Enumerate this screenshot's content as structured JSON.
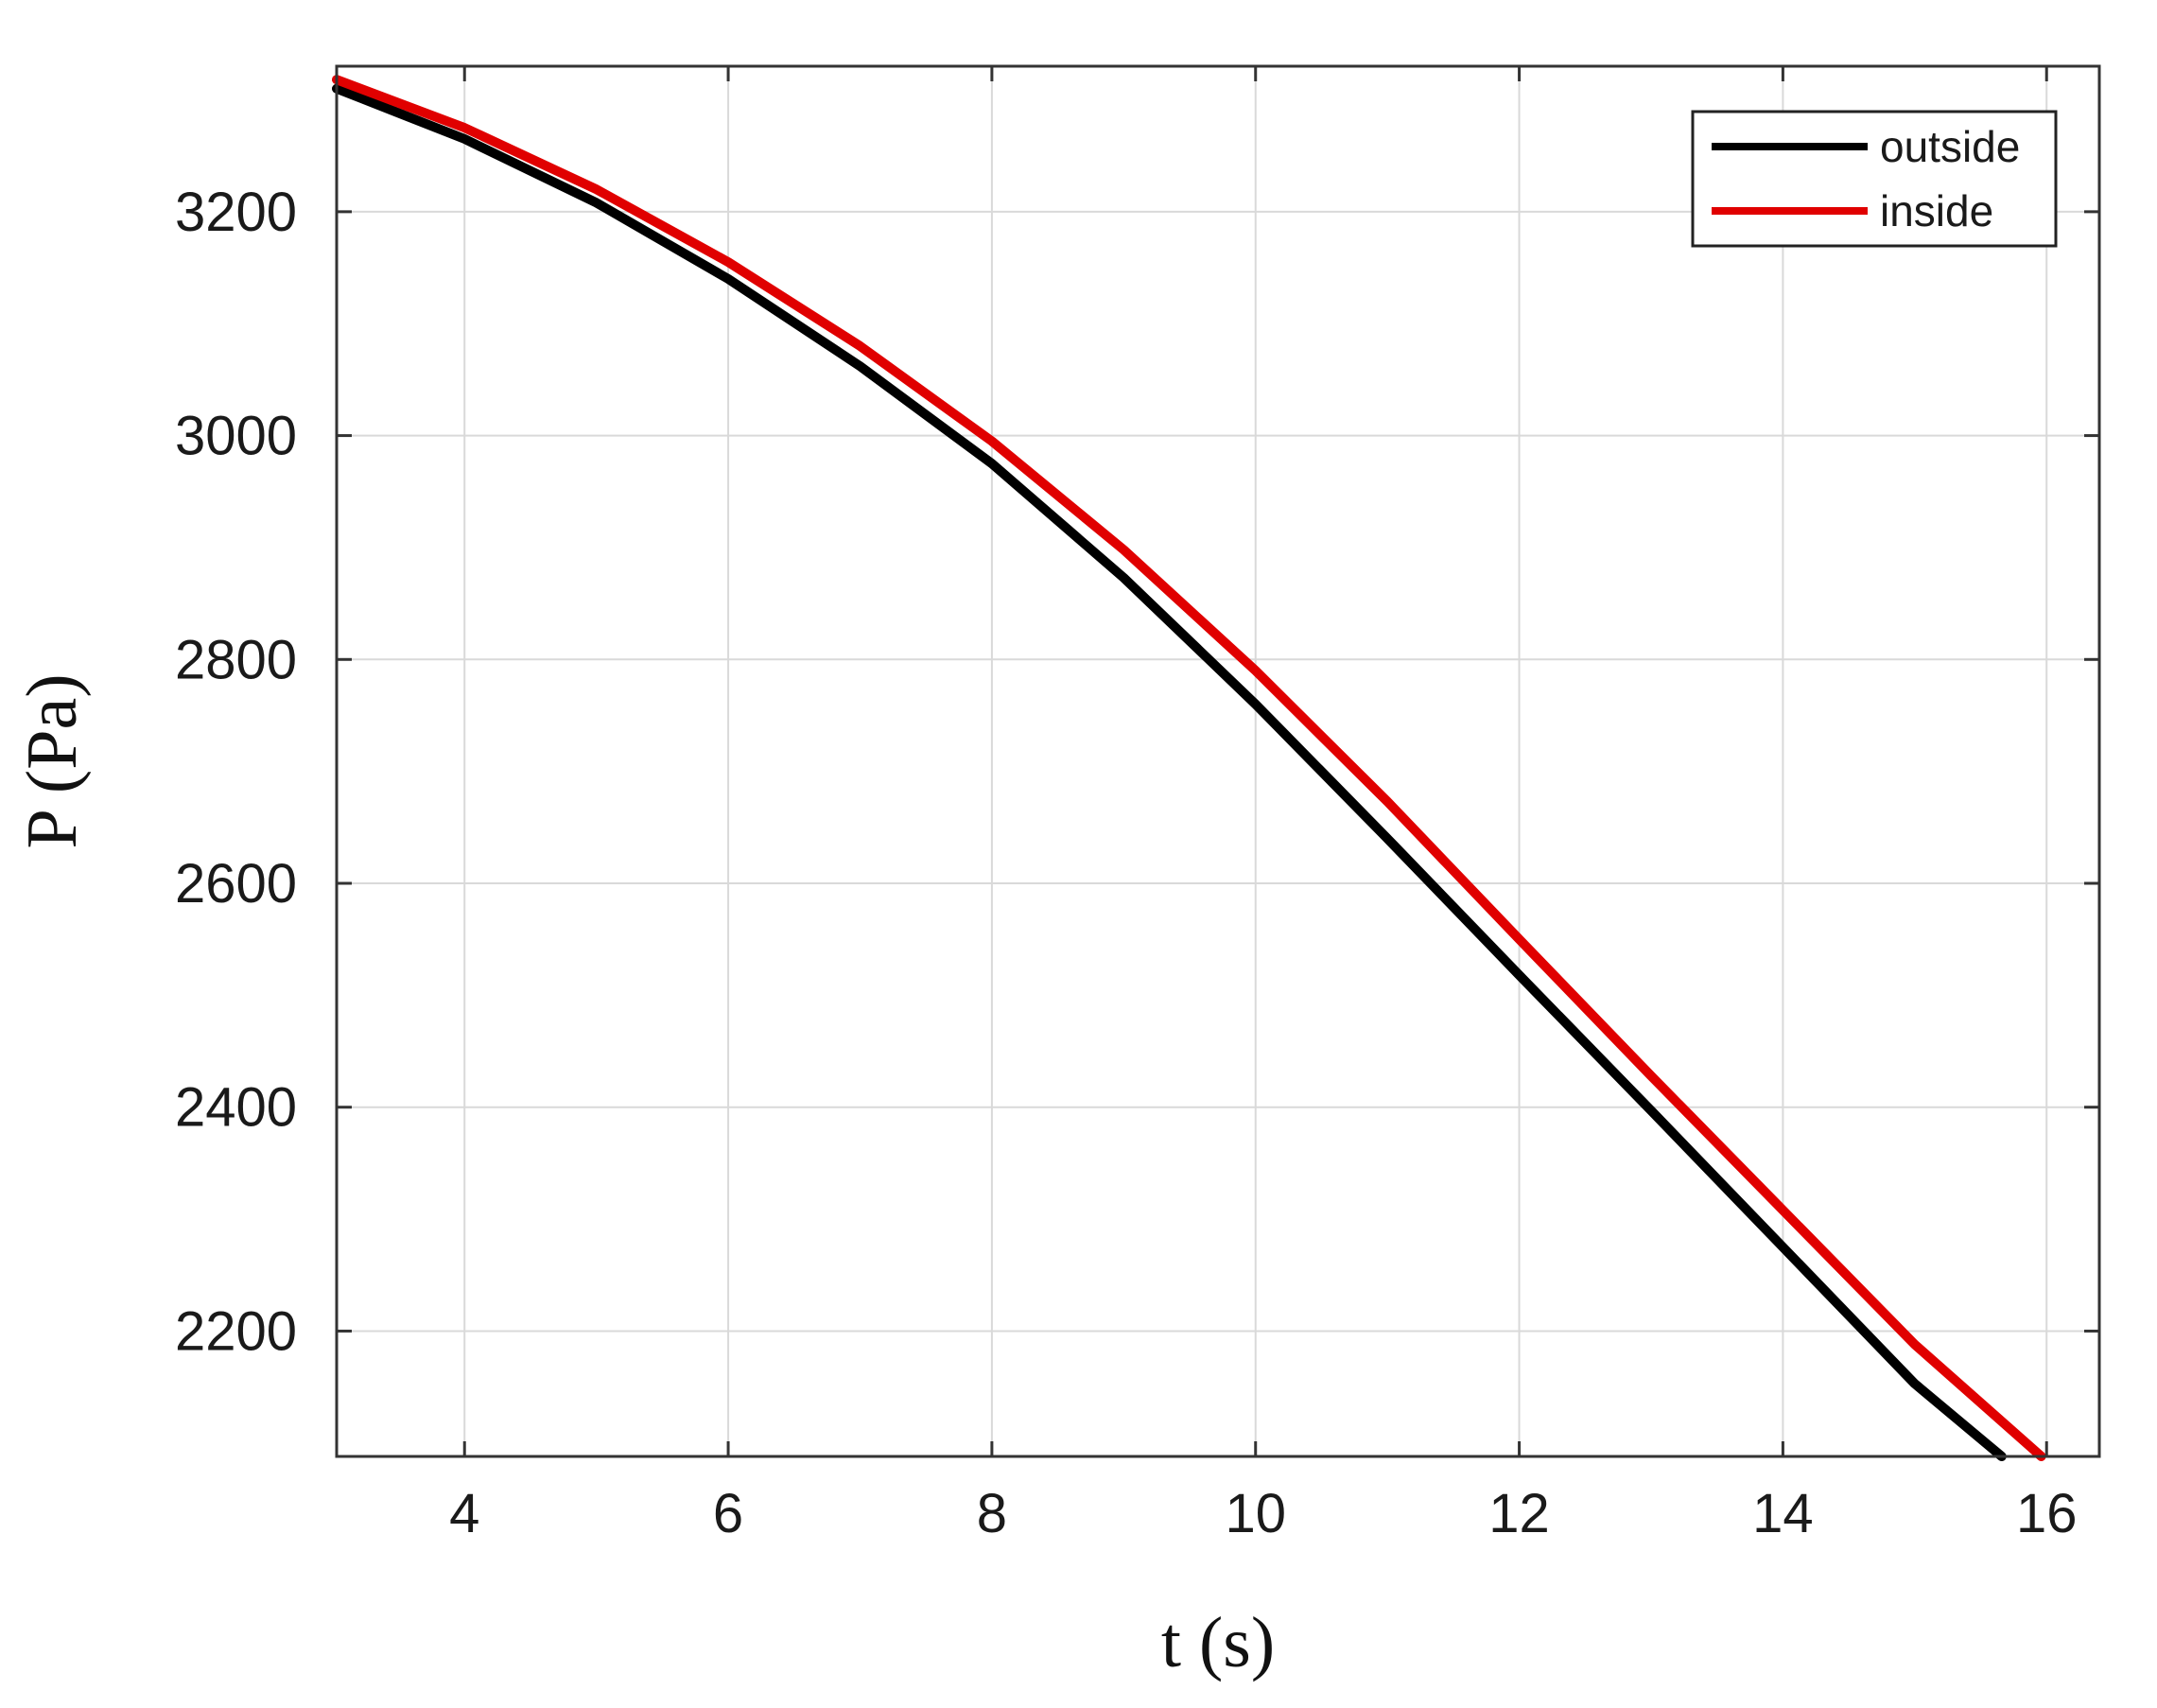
{
  "chart_data": {
    "type": "line",
    "title": "",
    "xlabel": "t (s)",
    "ylabel": "P (Pa)",
    "xlim": [
      3.03,
      16.4
    ],
    "ylim": [
      2088,
      3330
    ],
    "xticks": [
      4,
      6,
      8,
      10,
      12,
      14,
      16
    ],
    "yticks": [
      2200,
      2400,
      2600,
      2800,
      3000,
      3200
    ],
    "xtick_labels": [
      "4",
      "6",
      "8",
      "10",
      "12",
      "14",
      "16"
    ],
    "ytick_labels": [
      "2200",
      "2400",
      "2600",
      "2800",
      "3000",
      "3200"
    ],
    "grid": true,
    "legend_position": "top-right",
    "series": [
      {
        "name": "outside",
        "color": "#000000",
        "x": [
          3.03,
          4,
          5,
          6,
          7,
          8,
          9,
          10,
          11,
          12,
          13,
          14,
          15,
          15.66
        ],
        "y": [
          3310,
          3265,
          3208,
          3140,
          3062,
          2975,
          2873,
          2760,
          2640,
          2518,
          2397,
          2275,
          2153,
          2088
        ]
      },
      {
        "name": "inside",
        "color": "#e00000",
        "x": [
          3.03,
          4,
          5,
          6,
          7,
          8,
          9,
          10,
          11,
          12,
          13,
          14,
          15,
          15.96
        ],
        "y": [
          3318,
          3275,
          3220,
          3155,
          3080,
          2995,
          2898,
          2790,
          2673,
          2550,
          2428,
          2308,
          2188,
          2088
        ]
      }
    ]
  }
}
